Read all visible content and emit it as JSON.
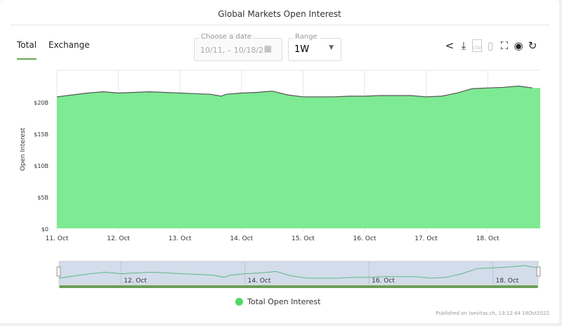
{
  "title": "Global Markets Open Interest",
  "tabs": [
    {
      "label": "Total",
      "active": true
    },
    {
      "label": "Exchange",
      "active": false
    }
  ],
  "date_picker": {
    "label": "Choose a date",
    "value": "10/11, – 10/18/2",
    "icon": "calendar-icon"
  },
  "range": {
    "label": "Range",
    "value": "1W"
  },
  "toolbar_icons": [
    "share-icon",
    "download-icon",
    "csv-icon",
    "bookmark-icon",
    "fullscreen-icon",
    "eye-icon",
    "refresh-icon"
  ],
  "csv_label": "CSV",
  "published": "Published on laevitas.ch, 13:12:44 18Oct2022",
  "chart_data": {
    "type": "area",
    "title": "Global Markets Open Interest",
    "ylabel": "Open Interest",
    "yticks": [
      "$0",
      "$5B",
      "$10B",
      "$15B",
      "$20B"
    ],
    "ylim": [
      0,
      25
    ],
    "xticks": [
      "11. Oct",
      "12. Oct",
      "13. Oct",
      "14. Oct",
      "15. Oct",
      "16. Oct",
      "17. Oct",
      "18. Oct"
    ],
    "navigator_ticks": [
      "12. Oct",
      "14. Oct",
      "16. Oct",
      "18. Oct"
    ],
    "grid": true,
    "color": "#7eea93",
    "line_color": "#555555",
    "legend": "bottom",
    "series": [
      {
        "name": "Total Open Interest",
        "unit": "USD billions",
        "x": [
          "2022-10-11 00:00",
          "2022-10-11 06:00",
          "2022-10-11 12:00",
          "2022-10-11 18:00",
          "2022-10-12 00:00",
          "2022-10-12 06:00",
          "2022-10-12 12:00",
          "2022-10-12 18:00",
          "2022-10-13 00:00",
          "2022-10-13 06:00",
          "2022-10-13 12:00",
          "2022-10-13 16:00",
          "2022-10-13 18:00",
          "2022-10-14 00:00",
          "2022-10-14 06:00",
          "2022-10-14 12:00",
          "2022-10-14 18:00",
          "2022-10-15 00:00",
          "2022-10-15 06:00",
          "2022-10-15 12:00",
          "2022-10-15 18:00",
          "2022-10-16 00:00",
          "2022-10-16 06:00",
          "2022-10-16 12:00",
          "2022-10-16 18:00",
          "2022-10-17 00:00",
          "2022-10-17 06:00",
          "2022-10-17 12:00",
          "2022-10-17 18:00",
          "2022-10-18 00:00",
          "2022-10-18 06:00",
          "2022-10-18 12:00",
          "2022-10-18 17:30"
        ],
        "values": [
          20.8,
          21.1,
          21.4,
          21.6,
          21.4,
          21.5,
          21.6,
          21.5,
          21.4,
          21.3,
          21.2,
          20.9,
          21.2,
          21.4,
          21.5,
          21.7,
          21.1,
          20.8,
          20.8,
          20.8,
          20.9,
          20.9,
          21.0,
          21.0,
          21.0,
          20.8,
          20.9,
          21.4,
          22.1,
          22.2,
          22.3,
          22.5,
          22.2
        ]
      }
    ]
  }
}
